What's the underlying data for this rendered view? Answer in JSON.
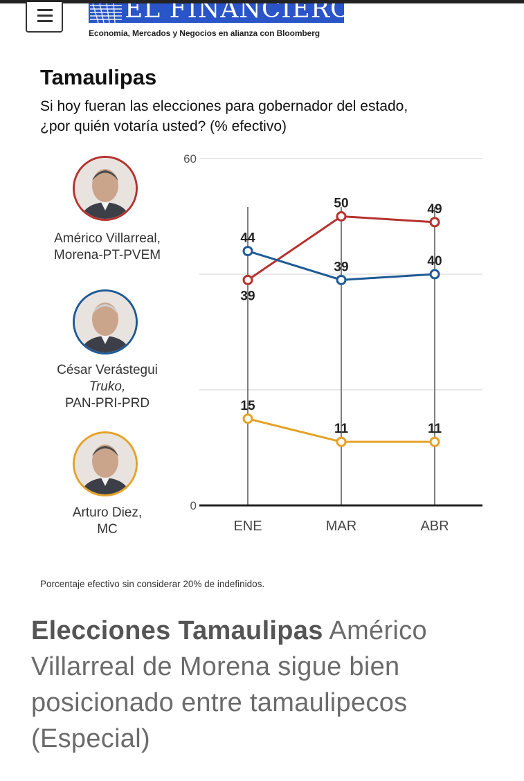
{
  "header": {
    "logo_text": "EL FINANCIERO",
    "tagline_prefix": "Economía, Mercados y Negocios en alianza con",
    "tagline_brand": "Bloomberg"
  },
  "chart_data": {
    "type": "line",
    "title": "Tamaulipas",
    "subtitle_line1": "Si hoy fueran las elecciones para gobernador del estado,",
    "subtitle_line2": "¿por quién votaría usted? (% efectivo)",
    "categories": [
      "ENE",
      "MAR",
      "ABR"
    ],
    "ylim": [
      0,
      60
    ],
    "y_ticks": [
      "0",
      "60"
    ],
    "grid": true,
    "series": [
      {
        "name": "Américo Villarreal, Morena-PT-PVEM",
        "color": "#b5322e",
        "values": [
          39,
          50,
          49
        ]
      },
      {
        "name": "César Verástegui Truko, PAN-PRI-PRD",
        "color": "#1f5a96",
        "values": [
          44,
          39,
          40
        ]
      },
      {
        "name": "Arturo Diez, MC",
        "color": "#e4a228",
        "values": [
          15,
          11,
          11
        ]
      }
    ]
  },
  "candidates": [
    {
      "label_lines": [
        "Américo Villarreal,",
        "Morena-PT-PVEM"
      ],
      "italic_line": "",
      "color": "#b5322e",
      "icon": "portrait-icon"
    },
    {
      "label_lines": [
        "César Verástegui",
        "PAN-PRI-PRD"
      ],
      "italic_line": "Truko,",
      "color": "#1f5a96",
      "icon": "portrait-icon"
    },
    {
      "label_lines": [
        "Arturo Diez,",
        "MC"
      ],
      "italic_line": "",
      "color": "#e4a228",
      "icon": "portrait-icon"
    }
  ],
  "footnote": "Porcentaje efectivo sin considerar 20% de indefinidos.",
  "caption": {
    "bold": "Elecciones Tamaulipas",
    "text": " Américo Villarreal de Morena sigue bien posicionado entre tamaulipecos (Especial)"
  },
  "icons": {
    "menu": "hamburger-menu-icon",
    "logo": "globe-logo-icon"
  }
}
